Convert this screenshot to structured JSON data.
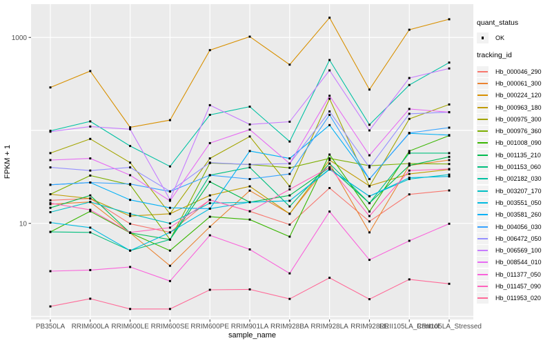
{
  "chart_data": {
    "type": "line",
    "title": "",
    "xlabel": "sample_name",
    "ylabel": "FPKM + 1",
    "y_scale": "log10",
    "grid": "major",
    "legend_position": "right",
    "ylim": [
      0.9,
      2300
    ],
    "y_ticks": [
      {
        "value": 10,
        "label": "10"
      },
      {
        "value": 1000,
        "label": "1000"
      }
    ],
    "y_gridlines": [
      1,
      10,
      100,
      1000
    ],
    "categories": [
      "PB350LA",
      "RRIM600LA",
      "RRIM600LE",
      "RRIM600SE",
      "RRIM600PE",
      "RRIM901LA",
      "RRIM928BA",
      "RRIM928LA",
      "RRIM928LE",
      "RRII105LA_Control",
      "RRII105LA_Stressed"
    ],
    "series": [
      {
        "name": "Hb_000046_290",
        "color": "#F8766D",
        "values": [
          17.7,
          18.5,
          9.9,
          8.0,
          17.9,
          13.5,
          9.7,
          24,
          10.5,
          20.5,
          22.6
        ]
      },
      {
        "name": "Hb_000061_300",
        "color": "#EA8331",
        "values": [
          16.1,
          17.0,
          7.9,
          3.5,
          9.2,
          22.5,
          12.7,
          44,
          8.0,
          42,
          48
        ]
      },
      {
        "name": "Hb_000224_120",
        "color": "#D89000",
        "values": [
          290,
          435,
          108,
          129,
          730,
          1020,
          510,
          1630,
          275,
          1210,
          1570
        ]
      },
      {
        "name": "Hb_000963_180",
        "color": "#C09B00",
        "values": [
          20.6,
          18.5,
          12.0,
          12.7,
          20,
          25,
          12.7,
          48,
          25.3,
          34,
          38
        ]
      },
      {
        "name": "Hb_000975_300",
        "color": "#A3A500",
        "values": [
          57,
          81,
          45,
          12.7,
          50,
          86,
          25,
          219,
          25,
          133,
          190
        ]
      },
      {
        "name": "Hb_000976_360",
        "color": "#7CAE00",
        "values": [
          20.6,
          32.7,
          26,
          6.7,
          44.6,
          43,
          39.6,
          50,
          41.7,
          44,
          43.5
        ]
      },
      {
        "name": "Hb_001008_090",
        "color": "#39B600",
        "values": [
          8.1,
          13.5,
          7.9,
          5.1,
          11.8,
          11,
          7.2,
          55,
          13.4,
          60,
          88
        ]
      },
      {
        "name": "Hb_001135_210",
        "color": "#00BB4E",
        "values": [
          14.7,
          20,
          7.9,
          6.7,
          28,
          16.9,
          20,
          40,
          16.5,
          42,
          52
        ]
      },
      {
        "name": "Hb_001153_060",
        "color": "#00BF7D",
        "values": [
          8.1,
          8.0,
          5.1,
          6.7,
          33,
          40,
          15.2,
          44,
          16.5,
          57,
          57
        ]
      },
      {
        "name": "Hb_002182_030",
        "color": "#00C1A3",
        "values": [
          99,
          125,
          68,
          41,
          147,
          180,
          76,
          571,
          115,
          308,
          536
        ]
      },
      {
        "name": "Hb_003207_170",
        "color": "#00BFC4",
        "values": [
          13.2,
          17,
          12.7,
          10,
          16.5,
          16.9,
          17.5,
          38,
          19.6,
          30,
          33.5
        ]
      },
      {
        "name": "Hb_003551_050",
        "color": "#00BAE0",
        "values": [
          10.2,
          9.0,
          5.1,
          8.0,
          14.4,
          16.9,
          17.5,
          38.5,
          19.6,
          31,
          32
        ]
      },
      {
        "name": "Hb_003581_260",
        "color": "#00B0F6",
        "values": [
          26,
          27.5,
          17.9,
          14.7,
          14.4,
          60,
          50,
          114,
          30,
          93,
          89
        ]
      },
      {
        "name": "Hb_004056_030",
        "color": "#35A2FF",
        "values": [
          26,
          27.5,
          26.5,
          22,
          33,
          30,
          34,
          147,
          30,
          94,
          107
        ]
      },
      {
        "name": "Hb_006472_050",
        "color": "#9590FF",
        "values": [
          40,
          37,
          40,
          22.1,
          45,
          43,
          44,
          160,
          40,
          151,
          157
        ]
      },
      {
        "name": "Hb_006569_100",
        "color": "#C77CFF",
        "values": [
          97,
          110,
          103,
          18,
          187,
          116,
          124,
          442,
          100,
          366,
          464
        ]
      },
      {
        "name": "Hb_008544_010",
        "color": "#E76BF3",
        "values": [
          48,
          50,
          33,
          17.5,
          73,
          102,
          44,
          236,
          54,
          170,
          157
        ]
      },
      {
        "name": "Hb_011377_050",
        "color": "#FA62DB",
        "values": [
          3.06,
          3.15,
          3.4,
          2.4,
          7.45,
          5.25,
          2.9,
          13.4,
          4.05,
          6.5,
          9.9
        ]
      },
      {
        "name": "Hb_011457_090",
        "color": "#FF62BC",
        "values": [
          16.5,
          14,
          8.0,
          9.0,
          17.9,
          13.5,
          23.2,
          40,
          12,
          37,
          38.5
        ]
      },
      {
        "name": "Hb_011953_020",
        "color": "#FF6A98",
        "values": [
          1.28,
          1.55,
          1.2,
          1.2,
          1.93,
          1.95,
          1.54,
          2.6,
          1.53,
          2.5,
          2.24
        ]
      }
    ],
    "legend": {
      "quant_status_title": "quant_status",
      "quant_status_items": [
        "OK"
      ],
      "tracking_title": "tracking_id"
    },
    "colors": {
      "panel_bg": "#EBEBEB",
      "gridline": "#FFFFFF",
      "point": "#000000",
      "axis_text": "#4D4D4D",
      "axis_title": "#000000",
      "tick_mark": "#333333",
      "legend_key_bg": "#F2F2F2"
    }
  }
}
